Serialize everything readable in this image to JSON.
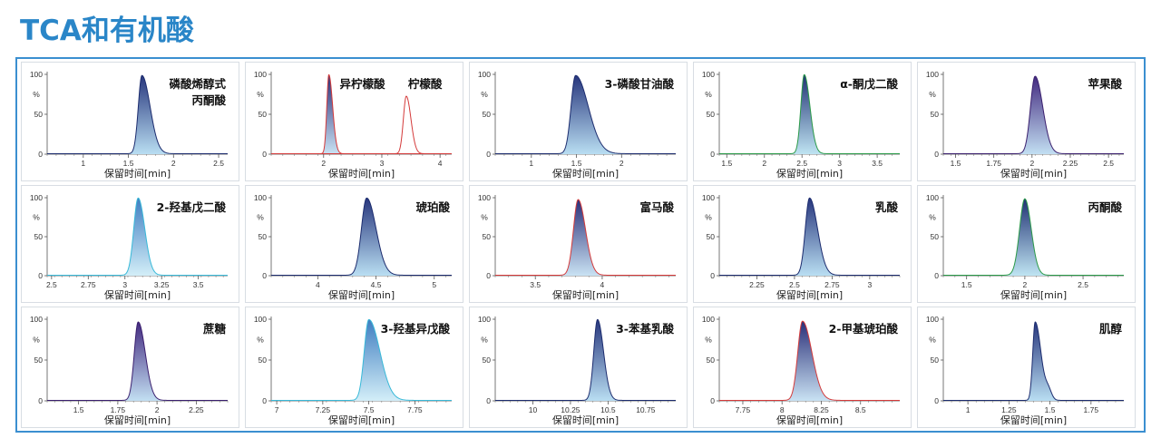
{
  "page": {
    "title": "TCA和有机酸"
  },
  "colors": {
    "title": "#2a86c8",
    "frame": "#3b8fd0",
    "peak_edge_dark": "#1c2c6e",
    "fill_light": "#bfe3f4"
  },
  "chart_data": [
    {
      "type": "area",
      "names": [
        "磷酸烯醇式",
        "丙酮酸"
      ],
      "xlabel": "保留时间[min]",
      "xlim": [
        0.6,
        2.6
      ],
      "ylim": [
        0,
        100
      ],
      "xticks": [
        {
          "v": 1,
          "t": "1"
        },
        {
          "v": 1.5,
          "t": "1.5"
        },
        {
          "v": 2,
          "t": "2"
        },
        {
          "v": 2.5,
          "t": "2.5"
        }
      ],
      "yticks": [
        {
          "v": 0,
          "t": "0"
        },
        {
          "v": 50,
          "t": "50"
        },
        {
          "v": 100,
          "t": "100"
        }
      ],
      "yunit": "%",
      "series": [
        {
          "rt": 1.65,
          "height": 98,
          "width": 0.04,
          "tail": 0.05,
          "color": "dark"
        }
      ]
    },
    {
      "type": "area",
      "names": [
        "异柠檬酸",
        "柠檬酸"
      ],
      "xlabel": "保留时间[min]",
      "xlim": [
        1.1,
        4.2
      ],
      "ylim": [
        0,
        100
      ],
      "xticks": [
        {
          "v": 2,
          "t": "2"
        },
        {
          "v": 3,
          "t": "3"
        },
        {
          "v": 4,
          "t": "4"
        }
      ],
      "yticks": [
        {
          "v": 0,
          "t": "0"
        },
        {
          "v": 50,
          "t": "50"
        },
        {
          "v": 100,
          "t": "100"
        }
      ],
      "yunit": "%",
      "series": [
        {
          "rt": 2.09,
          "height": 99,
          "width": 0.035,
          "tail": 0.03,
          "color": "red",
          "fill": true
        },
        {
          "rt": 3.42,
          "height": 72,
          "width": 0.05,
          "tail": 0.03,
          "color": "red",
          "fill": false
        }
      ]
    },
    {
      "type": "area",
      "names": [
        "3-磷酸甘油酸"
      ],
      "xlabel": "保留时间[min]",
      "xlim": [
        0.6,
        2.6
      ],
      "ylim": [
        0,
        100
      ],
      "xticks": [
        {
          "v": 1,
          "t": "1"
        },
        {
          "v": 1.5,
          "t": "1.5"
        },
        {
          "v": 2,
          "t": "2"
        }
      ],
      "yticks": [
        {
          "v": 0,
          "t": "0"
        },
        {
          "v": 50,
          "t": "50"
        },
        {
          "v": 100,
          "t": "100"
        }
      ],
      "yunit": "%",
      "series": [
        {
          "rt": 1.49,
          "height": 98,
          "width": 0.05,
          "tail": 0.09,
          "color": "dark"
        }
      ]
    },
    {
      "type": "area",
      "names": [
        "α-酮戊二酸"
      ],
      "xlabel": "保留时间[min]",
      "xlim": [
        1.4,
        3.8
      ],
      "ylim": [
        0,
        100
      ],
      "xticks": [
        {
          "v": 1.5,
          "t": "1.5"
        },
        {
          "v": 2,
          "t": "2"
        },
        {
          "v": 2.5,
          "t": "2.5"
        },
        {
          "v": 3,
          "t": "3"
        },
        {
          "v": 3.5,
          "t": "3.5"
        }
      ],
      "yticks": [
        {
          "v": 0,
          "t": "0"
        },
        {
          "v": 50,
          "t": "50"
        },
        {
          "v": 100,
          "t": "100"
        }
      ],
      "yunit": "%",
      "series": [
        {
          "rt": 2.53,
          "height": 99,
          "width": 0.045,
          "tail": 0.03,
          "color": "green"
        }
      ]
    },
    {
      "type": "area",
      "names": [
        "苹果酸"
      ],
      "xlabel": "保留时间[min]",
      "xlim": [
        1.42,
        2.6
      ],
      "ylim": [
        0,
        100
      ],
      "xticks": [
        {
          "v": 1.5,
          "t": "1.5"
        },
        {
          "v": 1.75,
          "t": "1.75"
        },
        {
          "v": 2,
          "t": "2"
        },
        {
          "v": 2.25,
          "t": "2.25"
        },
        {
          "v": 2.5,
          "t": "2.5"
        }
      ],
      "yticks": [
        {
          "v": 0,
          "t": "0"
        },
        {
          "v": 50,
          "t": "50"
        },
        {
          "v": 100,
          "t": "100"
        }
      ],
      "yunit": "%",
      "series": [
        {
          "rt": 2.02,
          "height": 97,
          "width": 0.03,
          "tail": 0.02,
          "color": "purple"
        }
      ]
    },
    {
      "type": "area",
      "names": [
        "2-羟基戊二酸"
      ],
      "xlabel": "保留时间[min]",
      "xlim": [
        2.47,
        3.7
      ],
      "ylim": [
        0,
        100
      ],
      "xticks": [
        {
          "v": 2.5,
          "t": "2.5"
        },
        {
          "v": 2.75,
          "t": "2.75"
        },
        {
          "v": 3,
          "t": "3"
        },
        {
          "v": 3.25,
          "t": "3.25"
        },
        {
          "v": 3.5,
          "t": "3.5"
        }
      ],
      "yticks": [
        {
          "v": 0,
          "t": "0"
        },
        {
          "v": 50,
          "t": "50"
        },
        {
          "v": 100,
          "t": "100"
        }
      ],
      "yunit": "%",
      "series": [
        {
          "rt": 3.09,
          "height": 99,
          "width": 0.03,
          "tail": 0.015,
          "color": "cyan"
        }
      ]
    },
    {
      "type": "area",
      "names": [
        "琥珀酸"
      ],
      "xlabel": "保留时间[min]",
      "xlim": [
        3.6,
        5.15
      ],
      "ylim": [
        0,
        100
      ],
      "xticks": [
        {
          "v": 4,
          "t": "4"
        },
        {
          "v": 4.5,
          "t": "4.5"
        },
        {
          "v": 5,
          "t": "5"
        }
      ],
      "yticks": [
        {
          "v": 0,
          "t": "0"
        },
        {
          "v": 50,
          "t": "50"
        },
        {
          "v": 100,
          "t": "100"
        }
      ],
      "yunit": "%",
      "series": [
        {
          "rt": 4.42,
          "height": 99,
          "width": 0.045,
          "tail": 0.035,
          "color": "dark"
        }
      ]
    },
    {
      "type": "area",
      "names": [
        "富马酸"
      ],
      "xlabel": "保留时间[min]",
      "xlim": [
        3.2,
        4.55
      ],
      "ylim": [
        0,
        100
      ],
      "xticks": [
        {
          "v": 3.5,
          "t": "3.5"
        },
        {
          "v": 4,
          "t": "4"
        }
      ],
      "yticks": [
        {
          "v": 0,
          "t": "0"
        },
        {
          "v": 50,
          "t": "50"
        },
        {
          "v": 100,
          "t": "100"
        }
      ],
      "yunit": "%",
      "series": [
        {
          "rt": 3.82,
          "height": 97,
          "width": 0.035,
          "tail": 0.02,
          "color": "red",
          "fill": true
        }
      ]
    },
    {
      "type": "area",
      "names": [
        "乳酸"
      ],
      "xlabel": "保留时间[min]",
      "xlim": [
        2.0,
        3.2
      ],
      "ylim": [
        0,
        100
      ],
      "xticks": [
        {
          "v": 2.25,
          "t": "2.25"
        },
        {
          "v": 2.5,
          "t": "2.5"
        },
        {
          "v": 2.75,
          "t": "2.75"
        },
        {
          "v": 3,
          "t": "3"
        }
      ],
      "yticks": [
        {
          "v": 0,
          "t": "0"
        },
        {
          "v": 50,
          "t": "50"
        },
        {
          "v": 100,
          "t": "100"
        }
      ],
      "yunit": "%",
      "series": [
        {
          "rt": 2.6,
          "height": 99,
          "width": 0.028,
          "tail": 0.025,
          "color": "dark"
        }
      ]
    },
    {
      "type": "area",
      "names": [
        "丙酮酸"
      ],
      "xlabel": "保留时间[min]",
      "xlim": [
        1.3,
        2.85
      ],
      "ylim": [
        0,
        100
      ],
      "xticks": [
        {
          "v": 1.5,
          "t": "1.5"
        },
        {
          "v": 2,
          "t": "2"
        },
        {
          "v": 2.5,
          "t": "2.5"
        }
      ],
      "yticks": [
        {
          "v": 0,
          "t": "0"
        },
        {
          "v": 50,
          "t": "50"
        },
        {
          "v": 100,
          "t": "100"
        }
      ],
      "yunit": "%",
      "series": [
        {
          "rt": 2.0,
          "height": 98,
          "width": 0.045,
          "tail": 0.01,
          "color": "green"
        }
      ]
    },
    {
      "type": "area",
      "names": [
        "蔗糖"
      ],
      "xlabel": "保留时间[min]",
      "xlim": [
        1.3,
        2.45
      ],
      "ylim": [
        0,
        100
      ],
      "xticks": [
        {
          "v": 1.5,
          "t": "1.5"
        },
        {
          "v": 1.75,
          "t": "1.75"
        },
        {
          "v": 2,
          "t": "2"
        },
        {
          "v": 2.25,
          "t": "2.25"
        }
      ],
      "yticks": [
        {
          "v": 0,
          "t": "0"
        },
        {
          "v": 50,
          "t": "50"
        },
        {
          "v": 100,
          "t": "100"
        }
      ],
      "yunit": "%",
      "series": [
        {
          "rt": 1.88,
          "height": 96,
          "width": 0.025,
          "tail": 0.02,
          "color": "purple"
        }
      ]
    },
    {
      "type": "area",
      "names": [
        "3-羟基异戊酸"
      ],
      "xlabel": "保留时间[min]",
      "xlim": [
        6.97,
        7.95
      ],
      "ylim": [
        0,
        100
      ],
      "xticks": [
        {
          "v": 7,
          "t": "7"
        },
        {
          "v": 7.25,
          "t": "7.25"
        },
        {
          "v": 7.5,
          "t": "7.5"
        },
        {
          "v": 7.75,
          "t": "7.75"
        }
      ],
      "yticks": [
        {
          "v": 0,
          "t": "0"
        },
        {
          "v": 50,
          "t": "50"
        },
        {
          "v": 100,
          "t": "100"
        }
      ],
      "yunit": "%",
      "series": [
        {
          "rt": 7.5,
          "height": 99,
          "width": 0.025,
          "tail": 0.035,
          "color": "cyan"
        }
      ]
    },
    {
      "type": "area",
      "names": [
        "3-苯基乳酸"
      ],
      "xlabel": "保留时间[min]",
      "xlim": [
        9.75,
        10.95
      ],
      "ylim": [
        0,
        100
      ],
      "xticks": [
        {
          "v": 10,
          "t": "10"
        },
        {
          "v": 10.25,
          "t": "10.25"
        },
        {
          "v": 10.5,
          "t": "10.5"
        },
        {
          "v": 10.75,
          "t": "10.75"
        }
      ],
      "yticks": [
        {
          "v": 0,
          "t": "0"
        },
        {
          "v": 50,
          "t": "50"
        },
        {
          "v": 100,
          "t": "100"
        }
      ],
      "yunit": "%",
      "series": [
        {
          "rt": 10.43,
          "height": 99,
          "width": 0.025,
          "tail": 0.015,
          "color": "dark"
        }
      ]
    },
    {
      "type": "area",
      "names": [
        "2-甲基琥珀酸"
      ],
      "xlabel": "保留时间[min]",
      "xlim": [
        7.6,
        8.75
      ],
      "ylim": [
        0,
        100
      ],
      "xticks": [
        {
          "v": 7.75,
          "t": "7.75"
        },
        {
          "v": 8,
          "t": "8"
        },
        {
          "v": 8.25,
          "t": "8.25"
        },
        {
          "v": 8.5,
          "t": "8.5"
        }
      ],
      "yticks": [
        {
          "v": 0,
          "t": "0"
        },
        {
          "v": 50,
          "t": "50"
        },
        {
          "v": 100,
          "t": "100"
        }
      ],
      "yunit": "%",
      "series": [
        {
          "rt": 8.13,
          "height": 97,
          "width": 0.03,
          "tail": 0.03,
          "color": "red",
          "fill": true
        }
      ]
    },
    {
      "type": "area",
      "names": [
        "肌醇"
      ],
      "xlabel": "保留时间[min]",
      "xlim": [
        0.85,
        1.95
      ],
      "ylim": [
        0,
        100
      ],
      "xticks": [
        {
          "v": 1,
          "t": "1"
        },
        {
          "v": 1.25,
          "t": "1.25"
        },
        {
          "v": 1.5,
          "t": "1.5"
        },
        {
          "v": 1.75,
          "t": "1.75"
        }
      ],
      "yticks": [
        {
          "v": 0,
          "t": "0"
        },
        {
          "v": 50,
          "t": "50"
        },
        {
          "v": 100,
          "t": "100"
        }
      ],
      "yunit": "%",
      "series": [
        {
          "rt": 1.41,
          "height": 96,
          "width": 0.015,
          "tail": 0.02,
          "color": "dark",
          "shoulder": {
            "rt": 1.49,
            "height": 12
          }
        }
      ]
    }
  ]
}
